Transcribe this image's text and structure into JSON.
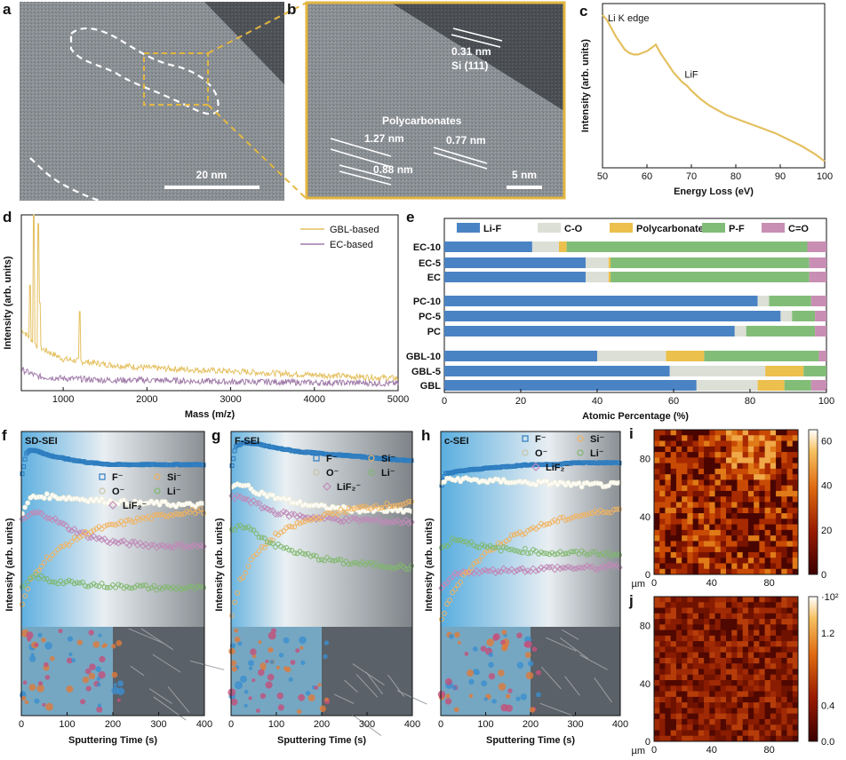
{
  "colors": {
    "gold": "#e4c060",
    "purple": "#a07aa8",
    "li_f": "#4a83c4",
    "c_o": "#dcdfd5",
    "polycarbonates": "#ecc04c",
    "p_f": "#82bd78",
    "c_eq_o": "#c98eb4",
    "f_minus": "#2d7dc0",
    "o_minus": "#f2efd8",
    "lif2": "#c08ab8",
    "si_minus": "#f1b35f",
    "li_minus": "#7fb86c"
  },
  "panel_labels": {
    "a": "a",
    "b": "b",
    "c": "c",
    "d": "d",
    "e": "e",
    "f": "f",
    "g": "g",
    "h": "h",
    "i": "i",
    "j": "j"
  },
  "panel_a": {
    "scale_bar": "20 nm"
  },
  "panel_b": {
    "label_si_spacing": "0.31 nm",
    "label_si_plane": "Si (111)",
    "label_polycarbonates": "Polycarbonates",
    "label_127": "1.27 nm",
    "label_077": "0.77 nm",
    "label_088": "0.88 nm",
    "scale_bar": "5 nm"
  },
  "chart_data": [
    {
      "id": "c",
      "type": "line",
      "title": "Li K edge",
      "xlabel": "Energy Loss (eV)",
      "ylabel": "Intensity (arb. units)",
      "xlim": [
        50,
        100
      ],
      "ylim": [
        0,
        1
      ],
      "xticks": [
        50,
        60,
        70,
        80,
        90,
        100
      ],
      "annotation": "LiF",
      "series": [
        {
          "name": "Li K edge",
          "x": [
            50,
            51,
            52,
            53,
            54,
            55,
            56,
            57,
            58,
            59,
            60,
            61,
            62,
            63,
            64,
            65,
            66,
            67,
            68,
            69,
            70,
            72,
            74,
            76,
            78,
            80,
            83,
            86,
            89,
            92,
            95,
            98,
            100
          ],
          "y": [
            0.93,
            0.9,
            0.85,
            0.8,
            0.76,
            0.72,
            0.7,
            0.69,
            0.69,
            0.7,
            0.71,
            0.73,
            0.75,
            0.7,
            0.66,
            0.62,
            0.58,
            0.55,
            0.52,
            0.5,
            0.47,
            0.42,
            0.38,
            0.35,
            0.32,
            0.3,
            0.27,
            0.24,
            0.21,
            0.17,
            0.13,
            0.08,
            0.04
          ]
        }
      ]
    },
    {
      "id": "d",
      "type": "line",
      "xlabel": "Mass (m/z)",
      "ylabel": "Intensity (arb. units)",
      "xlim": [
        500,
        5000
      ],
      "ylim": [
        0,
        1
      ],
      "xticks": [
        1000,
        2000,
        3000,
        4000,
        5000
      ],
      "legend_position": "top-right",
      "series": [
        {
          "name": "GBL-based",
          "baseline_x": [
            500,
            700,
            1000,
            1500,
            2000,
            2500,
            3000,
            3500,
            4000,
            4500,
            5000
          ],
          "baseline_y": [
            0.35,
            0.25,
            0.18,
            0.15,
            0.13,
            0.12,
            0.11,
            0.1,
            0.09,
            0.08,
            0.07
          ],
          "peaks_x": [
            600,
            650,
            700,
            720,
            1200
          ],
          "peaks_y": [
            0.6,
            1.0,
            0.95,
            0.5,
            0.45
          ]
        },
        {
          "name": "EC-based",
          "baseline_x": [
            500,
            700,
            1000,
            1500,
            2000,
            2500,
            3000,
            3500,
            4000,
            4500,
            5000
          ],
          "baseline_y": [
            0.12,
            0.08,
            0.07,
            0.06,
            0.06,
            0.055,
            0.05,
            0.05,
            0.045,
            0.045,
            0.04
          ]
        }
      ]
    },
    {
      "id": "e",
      "type": "bar",
      "orientation": "horizontal-stacked",
      "xlabel": "Atomic Percentage (%)",
      "xlim": [
        0,
        100
      ],
      "xticks": [
        0,
        20,
        40,
        60,
        80,
        100
      ],
      "components": [
        "Li-F",
        "C-O",
        "Polycarbonates",
        "P-F",
        "C=O"
      ],
      "categories": [
        "EC-10",
        "EC-5",
        "EC",
        "PC-10",
        "PC-5",
        "PC",
        "GBL-10",
        "GBL-5",
        "GBL"
      ],
      "values": {
        "EC-10": [
          23,
          7,
          2,
          63,
          5
        ],
        "EC-5": [
          37,
          6,
          0.5,
          52,
          4.5
        ],
        "EC": [
          37,
          6,
          0.5,
          52,
          4.5
        ],
        "PC-10": [
          82,
          3,
          0,
          11,
          4
        ],
        "PC-5": [
          88,
          3,
          0,
          6,
          3
        ],
        "PC": [
          76,
          3,
          0,
          18,
          3
        ],
        "GBL-10": [
          40,
          18,
          10,
          30,
          2
        ],
        "GBL-5": [
          59,
          25,
          10,
          6,
          0
        ],
        "GBL": [
          66,
          16,
          7,
          7,
          4
        ]
      }
    },
    {
      "id": "f",
      "type": "scatter",
      "title": "SD-SEI",
      "xlabel": "Sputtering Time (s)",
      "ylabel": "Intensity (arb. units)",
      "xlim": [
        0,
        400
      ],
      "xticks": [
        0,
        100,
        200,
        300,
        400
      ],
      "legend": [
        "F⁻",
        "O⁻",
        "LiF₂⁻",
        "Si⁻",
        "Li⁻"
      ],
      "series": [
        {
          "name": "F⁻",
          "x": [
            0,
            10,
            20,
            40,
            60,
            100,
            150,
            200,
            250,
            300,
            350,
            400
          ],
          "y": [
            0.8,
            0.94,
            0.96,
            0.95,
            0.93,
            0.91,
            0.89,
            0.88,
            0.88,
            0.88,
            0.88,
            0.88
          ]
        },
        {
          "name": "O⁻",
          "x": [
            0,
            20,
            50,
            100,
            150,
            200,
            250,
            300,
            350,
            400
          ],
          "y": [
            0.6,
            0.7,
            0.71,
            0.7,
            0.69,
            0.68,
            0.67,
            0.67,
            0.66,
            0.66
          ]
        },
        {
          "name": "LiF₂⁻",
          "x": [
            0,
            30,
            60,
            100,
            150,
            200,
            250,
            300,
            350,
            400
          ],
          "y": [
            0.58,
            0.62,
            0.6,
            0.54,
            0.49,
            0.46,
            0.45,
            0.44,
            0.44,
            0.44
          ]
        },
        {
          "name": "Si⁻",
          "x": [
            0,
            20,
            50,
            100,
            150,
            200,
            250,
            300,
            350,
            400
          ],
          "y": [
            0.1,
            0.25,
            0.36,
            0.45,
            0.52,
            0.55,
            0.58,
            0.6,
            0.62,
            0.63
          ]
        },
        {
          "name": "Li⁻",
          "x": [
            0,
            30,
            60,
            100,
            150,
            200,
            250,
            300,
            350,
            400
          ],
          "y": [
            0.2,
            0.28,
            0.25,
            0.24,
            0.23,
            0.22,
            0.22,
            0.21,
            0.21,
            0.21
          ]
        }
      ]
    },
    {
      "id": "g",
      "type": "scatter",
      "title": "F-SEI",
      "xlabel": "Sputtering Time (s)",
      "ylabel": "Intensity (arb. units)",
      "xlim": [
        0,
        400
      ],
      "xticks": [
        0,
        100,
        200,
        300,
        400
      ],
      "legend": [
        "F⁻",
        "O⁻",
        "LiF₂⁻",
        "Si⁻",
        "Li⁻"
      ],
      "series": [
        {
          "name": "F⁻",
          "x": [
            0,
            10,
            30,
            60,
            100,
            150,
            200,
            250,
            300,
            350,
            400
          ],
          "y": [
            0.85,
            0.98,
            1.0,
            0.99,
            0.97,
            0.95,
            0.94,
            0.93,
            0.92,
            0.91,
            0.9
          ]
        },
        {
          "name": "O⁻",
          "x": [
            0,
            20,
            50,
            100,
            150,
            200,
            250,
            300,
            350,
            400
          ],
          "y": [
            0.75,
            0.78,
            0.74,
            0.7,
            0.67,
            0.65,
            0.64,
            0.63,
            0.63,
            0.63
          ]
        },
        {
          "name": "LiF₂⁻",
          "x": [
            0,
            30,
            60,
            100,
            150,
            200,
            250,
            300,
            350,
            400
          ],
          "y": [
            0.7,
            0.7,
            0.66,
            0.62,
            0.6,
            0.59,
            0.58,
            0.58,
            0.57,
            0.57
          ]
        },
        {
          "name": "Si⁻",
          "x": [
            0,
            20,
            50,
            100,
            150,
            200,
            250,
            300,
            350,
            400
          ],
          "y": [
            0.05,
            0.25,
            0.38,
            0.5,
            0.56,
            0.6,
            0.63,
            0.65,
            0.66,
            0.67
          ]
        },
        {
          "name": "Li⁻",
          "x": [
            0,
            30,
            60,
            100,
            150,
            200,
            250,
            300,
            350,
            400
          ],
          "y": [
            0.52,
            0.55,
            0.5,
            0.44,
            0.4,
            0.37,
            0.35,
            0.34,
            0.33,
            0.32
          ]
        }
      ]
    },
    {
      "id": "h",
      "type": "scatter",
      "title": "c-SEI",
      "xlabel": "Sputtering Time (s)",
      "ylabel": "Intensity (arb. units)",
      "xlim": [
        0,
        400
      ],
      "xticks": [
        0,
        100,
        200,
        300,
        400
      ],
      "legend": [
        "F⁻",
        "O⁻",
        "LiF₂⁻",
        "Si⁻",
        "Li⁻"
      ],
      "series": [
        {
          "name": "F⁻",
          "x": [
            0,
            10,
            30,
            60,
            100,
            150,
            200,
            250,
            300,
            350,
            400
          ],
          "y": [
            0.75,
            0.83,
            0.84,
            0.85,
            0.86,
            0.87,
            0.88,
            0.88,
            0.89,
            0.89,
            0.89
          ]
        },
        {
          "name": "O⁻",
          "x": [
            0,
            20,
            50,
            100,
            150,
            200,
            250,
            300,
            350,
            400
          ],
          "y": [
            0.78,
            0.8,
            0.8,
            0.79,
            0.79,
            0.78,
            0.78,
            0.77,
            0.77,
            0.77
          ]
        },
        {
          "name": "LiF₂⁻",
          "x": [
            0,
            30,
            60,
            100,
            150,
            200,
            250,
            300,
            350,
            400
          ],
          "y": [
            0.2,
            0.28,
            0.3,
            0.3,
            0.31,
            0.31,
            0.32,
            0.32,
            0.32,
            0.33
          ]
        },
        {
          "name": "Si⁻",
          "x": [
            0,
            20,
            50,
            100,
            150,
            200,
            250,
            300,
            350,
            400
          ],
          "y": [
            0.03,
            0.15,
            0.28,
            0.4,
            0.48,
            0.53,
            0.57,
            0.6,
            0.62,
            0.64
          ]
        },
        {
          "name": "Li⁻",
          "x": [
            0,
            30,
            60,
            100,
            150,
            200,
            250,
            300,
            350,
            400
          ],
          "y": [
            0.42,
            0.48,
            0.46,
            0.43,
            0.42,
            0.41,
            0.4,
            0.4,
            0.4,
            0.39
          ]
        }
      ]
    },
    {
      "id": "i",
      "type": "heatmap",
      "xlabel": "µm",
      "xlim": [
        0,
        100
      ],
      "ylim": [
        0,
        100
      ],
      "xticks": [
        0,
        40,
        80
      ],
      "yticks": [
        0,
        40,
        80
      ],
      "colorbar_ticks": [
        "60",
        "40",
        "20",
        "0"
      ],
      "colorbar_range": [
        0,
        65
      ]
    },
    {
      "id": "j",
      "type": "heatmap",
      "xlabel": "µm",
      "xlim": [
        0,
        100
      ],
      "ylim": [
        0,
        100
      ],
      "xticks": [
        0,
        40,
        80
      ],
      "yticks": [
        0,
        40,
        80
      ],
      "colorbar_ticks": [
        "1.2",
        "0.4",
        "0.0"
      ],
      "colorbar_exponent": "·10²",
      "colorbar_range": [
        0,
        1.6
      ]
    }
  ]
}
